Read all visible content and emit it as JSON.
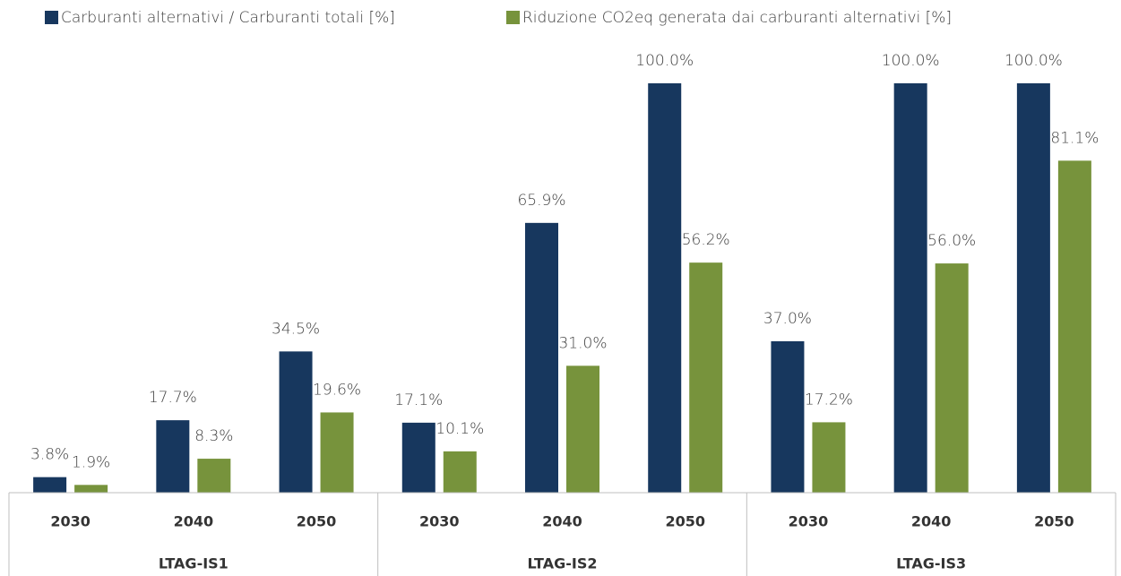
{
  "chart_data": {
    "type": "bar",
    "categories": [
      "2030",
      "2040",
      "2050",
      "2030",
      "2040",
      "2050",
      "2030",
      "2040",
      "2050"
    ],
    "groups": [
      "LTAG-IS1",
      "LTAG-IS2",
      "LTAG-IS3"
    ],
    "series": [
      {
        "name": "Carburanti alternativi / Carburanti totali [%]",
        "color": "#17375e",
        "values": [
          3.8,
          17.7,
          34.5,
          17.1,
          65.9,
          100,
          37.0,
          100,
          100
        ],
        "value_labels": [
          "3.8%",
          "17.7%",
          "34.5%",
          "17.1%",
          "65.9%",
          "100.0%",
          "37.0%",
          "100.0%",
          "100.0%"
        ]
      },
      {
        "name": "Riduzione CO2eq generata dai carburanti alternativi [%]",
        "color": "#77933c",
        "values": [
          1.9,
          8.3,
          19.6,
          10.1,
          31.0,
          56.2,
          17.2,
          56.0,
          81.1
        ],
        "value_labels": [
          "1.9%",
          "8.3%",
          "19.6%",
          "10.1%",
          "31.0%",
          "56.2%",
          "17.2%",
          "56.0%",
          "81.1%"
        ]
      }
    ],
    "ylim": [
      0,
      100
    ],
    "legend": "top"
  }
}
